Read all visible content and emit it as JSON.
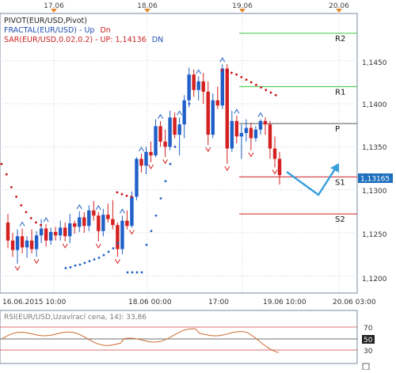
{
  "top_time_labels": [
    "17.06",
    "18.06",
    "19.06",
    "20.06"
  ],
  "bottom_time_labels": [
    "16.06.2015 10:00",
    "18.06 00:00",
    "17:00",
    "19.06 10:00",
    "20.06 03:00"
  ],
  "indicators": {
    "pivot": "PIVOT(EUR/USD,Pivot)",
    "fractal_prefix": "FRACTAL(EUR/USD)",
    "fractal_up": "Up",
    "fractal_dn": "Dn",
    "sar_prefix": "SAR(EUR/USD,0.02,0.2)",
    "sar_value": "UP: 1,14136",
    "sar_dir": "DN"
  },
  "price_axis": {
    "labels": [
      "1,1450",
      "1,1400",
      "1,1350",
      "1,1300",
      "1,1250",
      "1,1200"
    ],
    "current_price": "1,13165"
  },
  "pivot_levels": [
    {
      "label": "R2",
      "value": 1.1482,
      "color": "#3cc83c"
    },
    {
      "label": "R1",
      "value": 1.142,
      "color": "#3cc83c"
    },
    {
      "label": "P",
      "value": 1.1377,
      "color": "#555555"
    },
    {
      "label": "S1",
      "value": 1.1315,
      "color": "#cc2222"
    },
    {
      "label": "S2",
      "value": 1.1272,
      "color": "#cc2222"
    }
  ],
  "rsi": {
    "title": "RSI(EUR/USD,Uzavírací cena, 14): 33,86",
    "levels": [
      "70",
      "50",
      "30"
    ]
  },
  "colors": {
    "up": "#2060c8",
    "down": "#d42020",
    "sar": "#cc1111",
    "arrow": "#3aa0dd",
    "rsi_line": "#cc6a30",
    "cursor": "#1e6fbe"
  },
  "chart_data": {
    "type": "candlestick",
    "instrument": "EUR/USD",
    "y_range": [
      1.118,
      1.1505
    ],
    "candles": [
      [
        1.1262,
        1.1272,
        1.1232,
        1.1241
      ],
      [
        1.1241,
        1.125,
        1.1222,
        1.123
      ],
      [
        1.123,
        1.1254,
        1.1214,
        1.1246
      ],
      [
        1.1246,
        1.1255,
        1.1226,
        1.1233
      ],
      [
        1.1233,
        1.1246,
        1.1221,
        1.1241
      ],
      [
        1.1241,
        1.1254,
        1.1226,
        1.1231
      ],
      [
        1.1231,
        1.1252,
        1.1222,
        1.1247
      ],
      [
        1.1247,
        1.1266,
        1.1238,
        1.1255
      ],
      [
        1.1255,
        1.126,
        1.1234,
        1.1241
      ],
      [
        1.1241,
        1.1256,
        1.1236,
        1.1251
      ],
      [
        1.1251,
        1.1257,
        1.1241,
        1.1247
      ],
      [
        1.1247,
        1.1264,
        1.1241,
        1.1256
      ],
      [
        1.1256,
        1.1262,
        1.124,
        1.1246
      ],
      [
        1.1246,
        1.1272,
        1.1238,
        1.1261
      ],
      [
        1.1261,
        1.1264,
        1.1249,
        1.1257
      ],
      [
        1.1257,
        1.1275,
        1.1251,
        1.1268
      ],
      [
        1.1268,
        1.1274,
        1.125,
        1.1258
      ],
      [
        1.1258,
        1.1282,
        1.1252,
        1.1276
      ],
      [
        1.1276,
        1.1287,
        1.1264,
        1.127
      ],
      [
        1.127,
        1.1274,
        1.124,
        1.1252
      ],
      [
        1.1252,
        1.1278,
        1.1246,
        1.1271
      ],
      [
        1.1271,
        1.1284,
        1.1262,
        1.1266
      ],
      [
        1.1266,
        1.1288,
        1.1254,
        1.1259
      ],
      [
        1.1259,
        1.1262,
        1.1222,
        1.1231
      ],
      [
        1.1231,
        1.127,
        1.1225,
        1.1264
      ],
      [
        1.1264,
        1.1276,
        1.1254,
        1.1258
      ],
      [
        1.1258,
        1.1298,
        1.1256,
        1.1292
      ],
      [
        1.1292,
        1.1338,
        1.1288,
        1.1336
      ],
      [
        1.1336,
        1.1342,
        1.132,
        1.1328
      ],
      [
        1.1328,
        1.135,
        1.1318,
        1.1344
      ],
      [
        1.1344,
        1.1356,
        1.1332,
        1.134
      ],
      [
        1.134,
        1.1382,
        1.1338,
        1.1374
      ],
      [
        1.1374,
        1.138,
        1.135,
        1.1356
      ],
      [
        1.1356,
        1.137,
        1.1338,
        1.135
      ],
      [
        1.135,
        1.1392,
        1.1346,
        1.1384
      ],
      [
        1.1384,
        1.139,
        1.136,
        1.1364
      ],
      [
        1.1364,
        1.1384,
        1.134,
        1.1376
      ],
      [
        1.1376,
        1.141,
        1.136,
        1.1404
      ],
      [
        1.1404,
        1.1442,
        1.1396,
        1.1434
      ],
      [
        1.1434,
        1.144,
        1.1408,
        1.1416
      ],
      [
        1.1416,
        1.1432,
        1.1404,
        1.1426
      ],
      [
        1.1426,
        1.1436,
        1.14,
        1.1414
      ],
      [
        1.1414,
        1.1426,
        1.1352,
        1.1364
      ],
      [
        1.1364,
        1.1412,
        1.136,
        1.1404
      ],
      [
        1.1404,
        1.142,
        1.1394,
        1.1398
      ],
      [
        1.1398,
        1.1446,
        1.1394,
        1.1441
      ],
      [
        1.1441,
        1.1446,
        1.133,
        1.1348
      ],
      [
        1.1348,
        1.1392,
        1.1344,
        1.138
      ],
      [
        1.138,
        1.1386,
        1.1354,
        1.1362
      ],
      [
        1.1362,
        1.1376,
        1.1336,
        1.1366
      ],
      [
        1.1366,
        1.1382,
        1.1356,
        1.1372
      ],
      [
        1.1372,
        1.1378,
        1.1346,
        1.136
      ],
      [
        1.136,
        1.1374,
        1.1356,
        1.137
      ],
      [
        1.137,
        1.1382,
        1.1364,
        1.138
      ],
      [
        1.138,
        1.1384,
        1.1364,
        1.1376
      ],
      [
        1.1376,
        1.138,
        1.1336,
        1.1348
      ],
      [
        1.1348,
        1.1362,
        1.1326,
        1.1336
      ],
      [
        1.1336,
        1.1344,
        1.1306,
        1.1317
      ]
    ],
    "sar_dots_desc": [
      1.133,
      1.1318,
      1.1303,
      1.1292,
      1.1282,
      1.1274,
      1.1267,
      1.1262,
      1.1259
    ],
    "sar_dots_mid": [
      1.1297,
      1.1295,
      1.1293,
      1.1292
    ],
    "sar_dots_asc": [
      1.1209,
      1.121,
      1.1212,
      1.1213,
      1.1215,
      1.1217,
      1.1219,
      1.1221,
      1.1224,
      1.1228,
      1.1232,
      1.1238,
      1.1245,
      1.1204,
      1.1204,
      1.1204,
      1.1204,
      1.1236,
      1.1252,
      1.127,
      1.129,
      1.131,
      1.133,
      1.135,
      1.137,
      1.1386,
      1.14
    ],
    "sar_dots_top": [
      1.1439,
      1.1438,
      1.1436,
      1.1434,
      1.1431,
      1.1428,
      1.1425,
      1.1422,
      1.1419,
      1.1416,
      1.1413,
      1.141
    ]
  }
}
